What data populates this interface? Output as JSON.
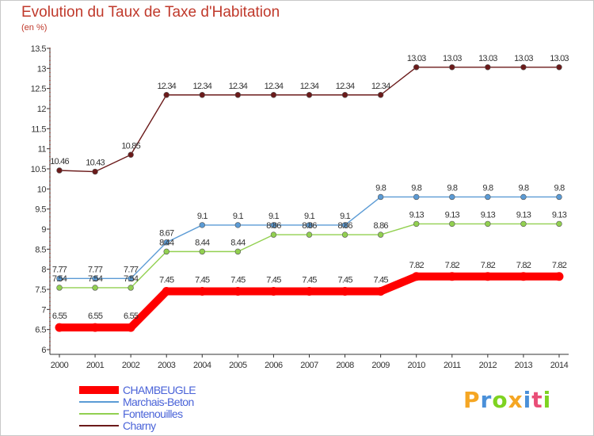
{
  "chart_data": {
    "type": "line",
    "title": "Evolution du Taux de Taxe d'Habitation",
    "subtitle": "(en %)",
    "x": [
      "2000",
      "2001",
      "2002",
      "2003",
      "2004",
      "2005",
      "2006",
      "2007",
      "2008",
      "2009",
      "2010",
      "2011",
      "2012",
      "2013",
      "2014"
    ],
    "ylim": [
      6,
      13.5
    ],
    "yticks": [
      "6",
      "6.5",
      "7",
      "7.5",
      "8",
      "8.5",
      "9",
      "9.5",
      "10",
      "10.5",
      "11",
      "11.5",
      "12",
      "12.5",
      "13",
      "13.5"
    ],
    "grid": false,
    "legend_position": "bottom-left",
    "series": [
      {
        "name": "Charny",
        "color": "#6b1a1a",
        "values": [
          10.46,
          10.43,
          10.85,
          12.34,
          12.34,
          12.34,
          12.34,
          12.34,
          12.34,
          12.34,
          13.03,
          13.03,
          13.03,
          13.03,
          13.03
        ],
        "labels": [
          "10.46",
          "10.43",
          "10.85",
          "12.34",
          "12.34",
          "12.34",
          "12.34",
          "12.34",
          "12.34",
          "12.34",
          "13.03",
          "13.03",
          "13.03",
          "13.03",
          "13.03"
        ]
      },
      {
        "name": "Marchais-Beton",
        "color": "#5b9bd5",
        "values": [
          7.77,
          7.77,
          7.77,
          8.67,
          9.1,
          9.1,
          9.1,
          9.1,
          9.1,
          9.8,
          9.8,
          9.8,
          9.8,
          9.8,
          9.8
        ],
        "labels": [
          "7.77",
          "7.77",
          "7.77",
          "8.67",
          "9.1",
          "9.1",
          "9.1",
          "9.1",
          "9.1",
          "9.8",
          "9.8",
          "9.8",
          "9.8",
          "9.8",
          "9.8"
        ]
      },
      {
        "name": "Fontenouilles",
        "color": "#92d050",
        "values": [
          7.54,
          7.54,
          7.54,
          8.44,
          8.44,
          8.44,
          8.86,
          8.86,
          8.86,
          8.86,
          9.13,
          9.13,
          9.13,
          9.13,
          9.13
        ],
        "labels": [
          "7.54",
          "7.54",
          "7.54",
          "8.44",
          "8.44",
          "8.44",
          "8.86",
          "8.86",
          "8.86",
          "8.86",
          "9.13",
          "9.13",
          "9.13",
          "9.13",
          "9.13"
        ]
      },
      {
        "name": "CHAMBEUGLE",
        "color": "#ff0000",
        "values": [
          6.55,
          6.55,
          6.55,
          7.45,
          7.45,
          7.45,
          7.45,
          7.45,
          7.45,
          7.45,
          7.82,
          7.82,
          7.82,
          7.82,
          7.82
        ],
        "labels": [
          "6.55",
          "6.55",
          "6.55",
          "7.45",
          "7.45",
          "7.45",
          "7.45",
          "7.45",
          "7.45",
          "7.45",
          "7.82",
          "7.82",
          "7.82",
          "7.82",
          "7.82"
        ]
      }
    ],
    "legend": [
      {
        "name": "CHAMBEUGLE",
        "color": "#ff0000"
      },
      {
        "name": "Marchais-Beton",
        "color": "#5b9bd5"
      },
      {
        "name": "Fontenouilles",
        "color": "#92d050"
      },
      {
        "name": "Charny",
        "color": "#6b1a1a"
      }
    ]
  },
  "logo": {
    "letters": [
      "P",
      "r",
      "o",
      "x",
      "i",
      "t",
      "i"
    ],
    "colors": [
      "#f5a623",
      "#4a90d9",
      "#7ed321",
      "#f5a623",
      "#4a90d9",
      "#e94e77",
      "#7ed321"
    ]
  }
}
